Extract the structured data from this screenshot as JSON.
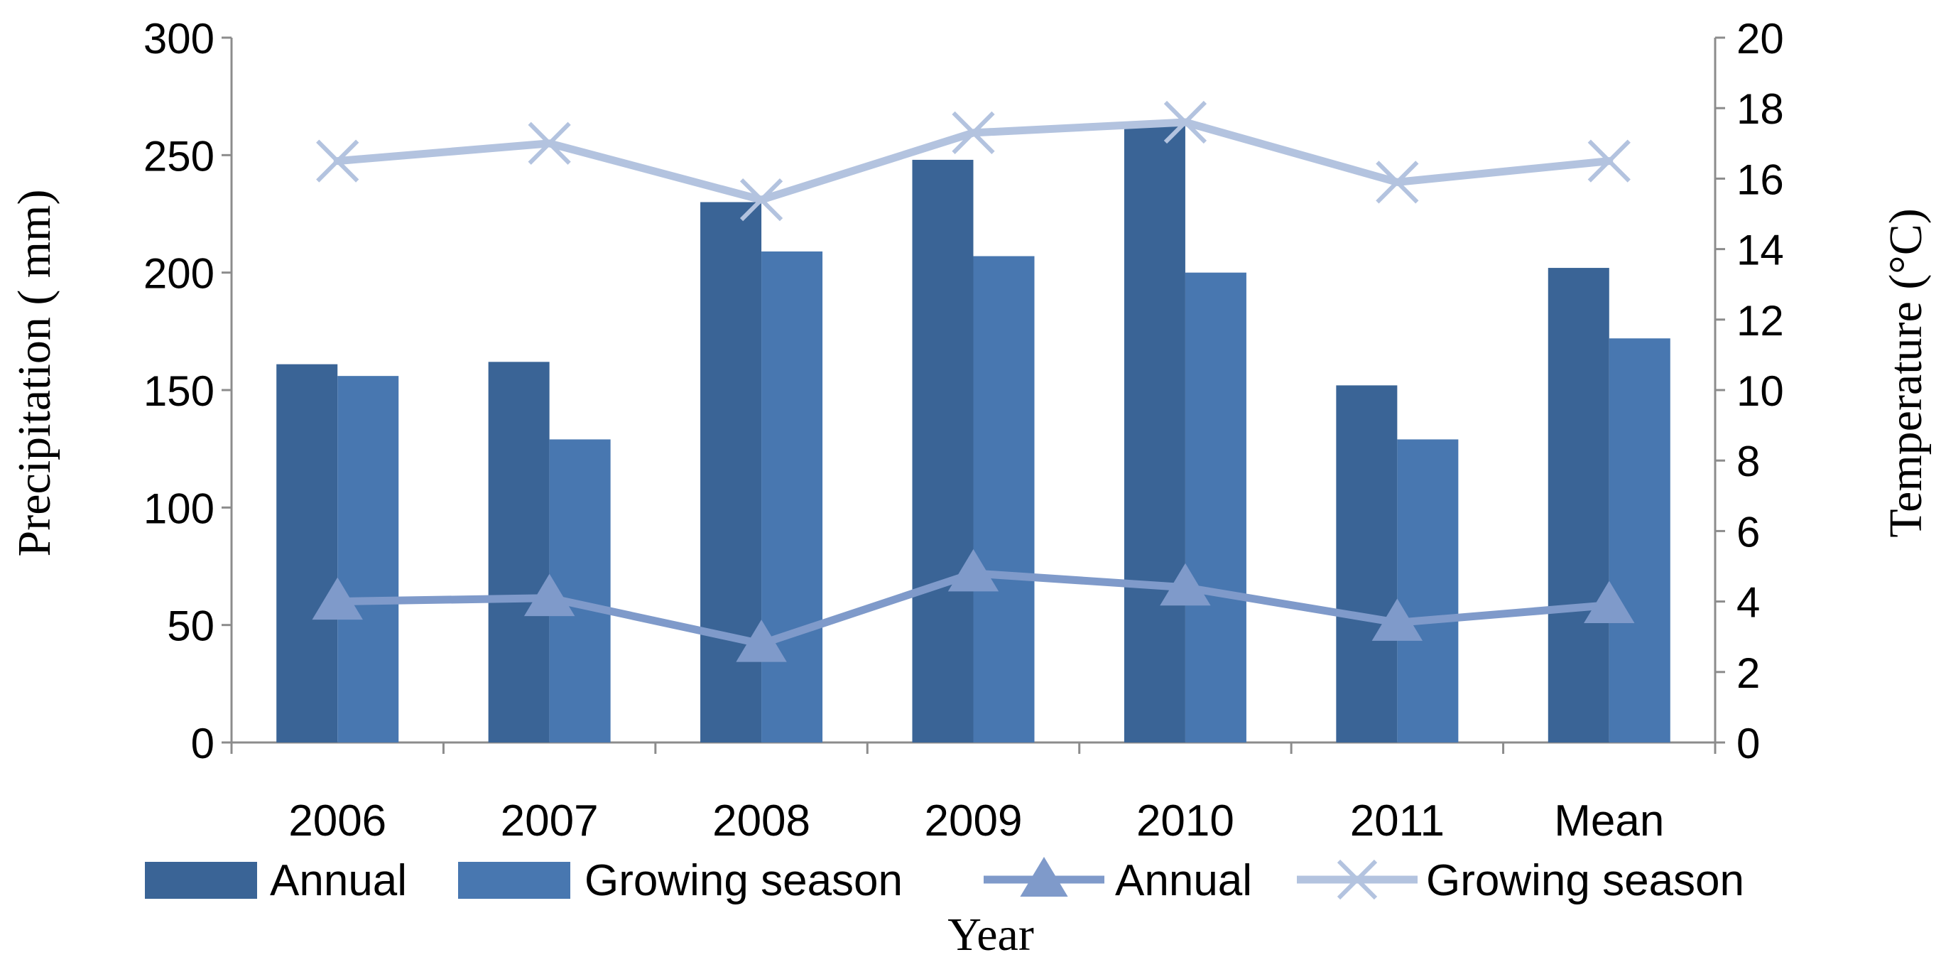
{
  "chart_data": {
    "type": "bar",
    "categories": [
      "2006",
      "2007",
      "2008",
      "2009",
      "2010",
      "2011",
      "Mean"
    ],
    "bar_series": [
      {
        "name": "Annual",
        "axis": "left",
        "color": "#3A6496",
        "values": [
          161,
          162,
          230,
          248,
          263,
          152,
          202
        ]
      },
      {
        "name": "Growing season",
        "axis": "left",
        "color": "#4877B0",
        "values": [
          156,
          129,
          209,
          207,
          200,
          129,
          172
        ]
      }
    ],
    "line_series": [
      {
        "name": "Annual",
        "axis": "right",
        "color": "#7F9ACA",
        "marker": "triangle",
        "values": [
          4.0,
          4.1,
          2.8,
          4.8,
          4.4,
          3.4,
          3.9
        ]
      },
      {
        "name": "Growing season",
        "axis": "right",
        "color": "#B3C3DF",
        "marker": "x",
        "values": [
          16.5,
          17.0,
          15.4,
          17.3,
          17.6,
          15.9,
          16.5
        ]
      }
    ],
    "xlabel": "Year",
    "ylabel_left": "Precipitation ( mm)",
    "ylabel_right": "Temperature (°C)",
    "ylim_left": [
      0,
      300
    ],
    "yticks_left": [
      "0",
      "50",
      "100",
      "150",
      "200",
      "250",
      "300"
    ],
    "ylim_right": [
      0,
      20
    ],
    "yticks_right": [
      "0",
      "2",
      "4",
      "6",
      "8",
      "10",
      "12",
      "14",
      "16",
      "18",
      "20"
    ],
    "legend_position": "bottom",
    "grid": false
  }
}
